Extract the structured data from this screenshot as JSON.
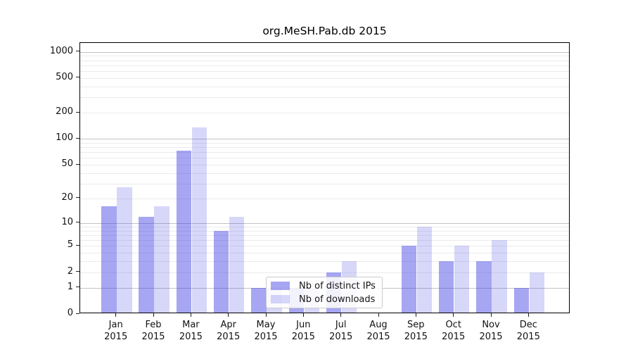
{
  "figure": {
    "background": "#ffffff"
  },
  "chart_data": {
    "type": "bar",
    "title": "org.MeSH.Pab.db 2015",
    "categories": [
      {
        "month": "Jan",
        "year": "2015"
      },
      {
        "month": "Feb",
        "year": "2015"
      },
      {
        "month": "Mar",
        "year": "2015"
      },
      {
        "month": "Apr",
        "year": "2015"
      },
      {
        "month": "May",
        "year": "2015"
      },
      {
        "month": "Jun",
        "year": "2015"
      },
      {
        "month": "Jul",
        "year": "2015"
      },
      {
        "month": "Aug",
        "year": "2015"
      },
      {
        "month": "Sep",
        "year": "2015"
      },
      {
        "month": "Oct",
        "year": "2015"
      },
      {
        "month": "Nov",
        "year": "2015"
      },
      {
        "month": "Dec",
        "year": "2015"
      }
    ],
    "series": [
      {
        "name": "Nb of distinct IPs",
        "alpha": 0.45,
        "values": [
          16,
          12,
          73,
          8,
          1,
          1,
          2,
          0,
          5,
          3,
          3,
          1
        ]
      },
      {
        "name": "Nb of downloads",
        "alpha": 0.2,
        "values": [
          27,
          16,
          135,
          12,
          1,
          1,
          3,
          0,
          9,
          5,
          6,
          2
        ]
      }
    ],
    "bar_base_color": "#3939e2",
    "grid_major_color": "#c3c3c3",
    "grid_minor_color": "#ebebeb",
    "xlabel": "",
    "ylabel": "",
    "yscale": "log1p",
    "ylim": [
      0,
      1261
    ],
    "y_ticks": [
      0,
      1,
      2,
      5,
      10,
      20,
      50,
      100,
      200,
      500,
      1000
    ],
    "grid": true,
    "legend_position": "lower center"
  }
}
